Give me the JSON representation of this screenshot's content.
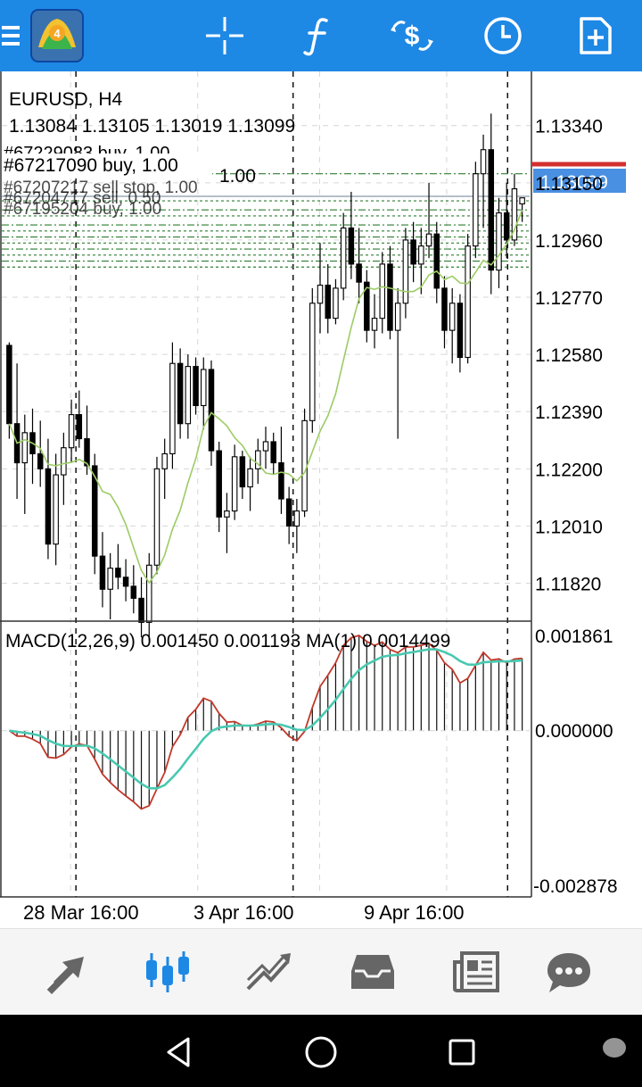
{
  "toolbar": {
    "icons": [
      "menu-icon",
      "metatrader-logo-icon",
      "crosshair-icon",
      "function-icon",
      "objects-icon",
      "timeframe-clock-icon",
      "add-indicator-icon"
    ],
    "logo_badge": "4"
  },
  "chart": {
    "symbol_title": "EURUSD, H4",
    "ohlc_line": "1.13084 1.13105 1.13019 1.13099",
    "current_price": "1.13099",
    "price_axis": [
      "1.13340",
      "1.13150",
      "1.12960",
      "1.12770",
      "1.12580",
      "1.12390",
      "1.12200",
      "1.12010",
      "1.11820"
    ],
    "orders": {
      "top_label": "#67229083 buy, 1.00",
      "main_label": "#67217090 buy, 1.00",
      "lot_label": "1.00",
      "label_3": "#67207217 sell stop, 1.00",
      "label_4": "#67204717 sell, 0.50",
      "label_5": "#67195204 buy, 1.00"
    },
    "macd": {
      "label": "MACD(12,26,9) 0.001450 0.001193 MA(1) 0.0014499",
      "axis": [
        "0.001861",
        "0.000000",
        "-0.002878"
      ]
    },
    "time_axis": [
      "28 Mar 16:00",
      "3 Apr 16:00",
      "9 Apr 16:00"
    ],
    "colors": {
      "bull": "#ffffff",
      "bear": "#000000",
      "ma_line": "#9ccc65",
      "macd_signal": "#c0392b",
      "macd_main": "#48c9b0",
      "bid_line": "#d32f2f",
      "price_tag": "#4a90e2",
      "order_line": "#2e7d32"
    }
  },
  "chart_data": {
    "type": "candlestick",
    "symbol": "EURUSD",
    "timeframe": "H4",
    "ylim": [
      1.117,
      1.1352
    ],
    "candles": [
      [
        1.1261,
        1.1262,
        1.123,
        1.1235
      ],
      [
        1.1235,
        1.1255,
        1.121,
        1.1222
      ],
      [
        1.1222,
        1.1238,
        1.1205,
        1.1232
      ],
      [
        1.1232,
        1.124,
        1.1215,
        1.1225
      ],
      [
        1.1225,
        1.1236,
        1.1214,
        1.122
      ],
      [
        1.122,
        1.123,
        1.119,
        1.1195
      ],
      [
        1.1195,
        1.1225,
        1.1188,
        1.1218
      ],
      [
        1.1218,
        1.1232,
        1.1208,
        1.1227
      ],
      [
        1.1227,
        1.1243,
        1.1222,
        1.1238
      ],
      [
        1.1238,
        1.1246,
        1.1227,
        1.123
      ],
      [
        1.123,
        1.1241,
        1.1218,
        1.1221
      ],
      [
        1.1221,
        1.1225,
        1.1185,
        1.1191
      ],
      [
        1.1191,
        1.1199,
        1.1174,
        1.118
      ],
      [
        1.118,
        1.1192,
        1.117,
        1.1187
      ],
      [
        1.1187,
        1.1195,
        1.118,
        1.1184
      ],
      [
        1.1184,
        1.119,
        1.1176,
        1.1181
      ],
      [
        1.1181,
        1.1188,
        1.1172,
        1.1177
      ],
      [
        1.1177,
        1.1184,
        1.1164,
        1.1169
      ],
      [
        1.1169,
        1.1192,
        1.1163,
        1.1188
      ],
      [
        1.1188,
        1.1224,
        1.1185,
        1.122
      ],
      [
        1.122,
        1.123,
        1.121,
        1.1225
      ],
      [
        1.1225,
        1.1262,
        1.122,
        1.1255
      ],
      [
        1.1255,
        1.126,
        1.123,
        1.1235
      ],
      [
        1.1235,
        1.1258,
        1.123,
        1.1254
      ],
      [
        1.1254,
        1.1257,
        1.1238,
        1.1241
      ],
      [
        1.1241,
        1.1257,
        1.1233,
        1.1253
      ],
      [
        1.1253,
        1.1256,
        1.1221,
        1.1226
      ],
      [
        1.1226,
        1.1229,
        1.1199,
        1.1204
      ],
      [
        1.1204,
        1.1212,
        1.1192,
        1.1206
      ],
      [
        1.1206,
        1.1228,
        1.1203,
        1.1224
      ],
      [
        1.1224,
        1.1226,
        1.121,
        1.1214
      ],
      [
        1.1214,
        1.1224,
        1.1206,
        1.122
      ],
      [
        1.122,
        1.123,
        1.1215,
        1.1226
      ],
      [
        1.1226,
        1.1234,
        1.122,
        1.1229
      ],
      [
        1.1229,
        1.1232,
        1.1218,
        1.1222
      ],
      [
        1.1222,
        1.1234,
        1.1205,
        1.121
      ],
      [
        1.121,
        1.1214,
        1.1195,
        1.1201
      ],
      [
        1.1201,
        1.121,
        1.1192,
        1.1206
      ],
      [
        1.1206,
        1.124,
        1.1204,
        1.1236
      ],
      [
        1.1236,
        1.128,
        1.1232,
        1.1275
      ],
      [
        1.1275,
        1.1295,
        1.1265,
        1.1281
      ],
      [
        1.1281,
        1.1288,
        1.1265,
        1.127
      ],
      [
        1.127,
        1.1283,
        1.1268,
        1.128
      ],
      [
        1.128,
        1.1305,
        1.1276,
        1.13
      ],
      [
        1.13,
        1.1312,
        1.1283,
        1.1288
      ],
      [
        1.1288,
        1.13,
        1.1275,
        1.1282
      ],
      [
        1.1282,
        1.1286,
        1.1262,
        1.1266
      ],
      [
        1.1266,
        1.1278,
        1.126,
        1.127
      ],
      [
        1.127,
        1.1292,
        1.1265,
        1.1288
      ],
      [
        1.1288,
        1.1294,
        1.1263,
        1.1266
      ],
      [
        1.1266,
        1.128,
        1.123,
        1.1275
      ],
      [
        1.1275,
        1.13,
        1.127,
        1.1296
      ],
      [
        1.1296,
        1.1302,
        1.1282,
        1.1288
      ],
      [
        1.1288,
        1.13,
        1.1278,
        1.1294
      ],
      [
        1.1294,
        1.1315,
        1.129,
        1.1298
      ],
      [
        1.1298,
        1.1302,
        1.1275,
        1.128
      ],
      [
        1.128,
        1.1284,
        1.126,
        1.1266
      ],
      [
        1.1266,
        1.128,
        1.1255,
        1.1275
      ],
      [
        1.1275,
        1.1278,
        1.1252,
        1.1257
      ],
      [
        1.1257,
        1.1298,
        1.1255,
        1.1294
      ],
      [
        1.1294,
        1.1322,
        1.129,
        1.1318
      ],
      [
        1.1318,
        1.1331,
        1.13,
        1.1326
      ],
      [
        1.1326,
        1.1338,
        1.1278,
        1.1286
      ],
      [
        1.1286,
        1.131,
        1.128,
        1.1305
      ],
      [
        1.1305,
        1.1315,
        1.129,
        1.1296
      ],
      [
        1.1296,
        1.1318,
        1.1294,
        1.1313
      ],
      [
        1.1308,
        1.131,
        1.1302,
        1.131
      ]
    ],
    "macd_ylim": [
      -0.002878,
      0.001861
    ]
  }
}
